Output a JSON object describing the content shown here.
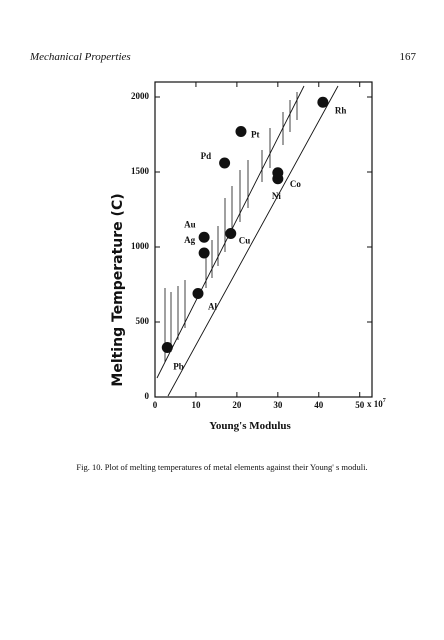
{
  "header": {
    "running_title": "Mechanical Properties",
    "page_number": "167"
  },
  "chart_data": {
    "type": "scatter",
    "xlabel": "Young's Modulus",
    "ylabel": "Melting Temperature (C)",
    "x_multiplier": "x 10",
    "x_multiplier_exponent": "7",
    "xlim": [
      0,
      53
    ],
    "ylim": [
      0,
      2100
    ],
    "xticks": [
      0,
      10,
      20,
      30,
      40,
      50
    ],
    "yticks": [
      0,
      500,
      1000,
      1500,
      2000
    ],
    "color": "#111111",
    "labels": [
      "Pb",
      "Al",
      "Ag",
      "Au",
      "Cu",
      "Pd",
      "Pt",
      "Ni",
      "Co",
      "Rh"
    ],
    "x": [
      3,
      10.5,
      12,
      12,
      18.5,
      17,
      21,
      30,
      30,
      41
    ],
    "values": [
      330,
      690,
      960,
      1065,
      1090,
      1560,
      1770,
      1455,
      1495,
      1965
    ]
  },
  "caption": "Fig. 10. Plot of melting temperatures of metal elements against their Young' s moduli."
}
